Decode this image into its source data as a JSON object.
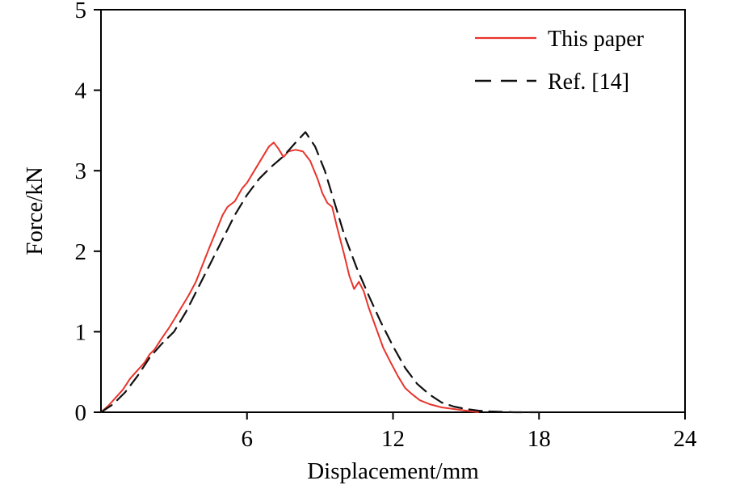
{
  "chart_data": {
    "type": "line",
    "title": "",
    "xlabel": "Displacement/mm",
    "ylabel": "Force/kN",
    "xlim": [
      0,
      24
    ],
    "ylim": [
      0,
      5
    ],
    "xticks": [
      6,
      12,
      18,
      24
    ],
    "yticks": [
      0,
      1,
      2,
      3,
      4,
      5
    ],
    "grid": false,
    "legend_position": "top-right",
    "frame_color": "#000000",
    "series": [
      {
        "name": "This paper",
        "color": "#e8342c",
        "style": "solid",
        "x": [
          0,
          0.3,
          0.6,
          0.9,
          1.2,
          1.5,
          1.8,
          2.0,
          2.2,
          2.5,
          2.8,
          3.0,
          3.3,
          3.6,
          3.9,
          4.2,
          4.5,
          4.8,
          5.0,
          5.2,
          5.5,
          5.8,
          6.0,
          6.3,
          6.6,
          6.9,
          7.1,
          7.3,
          7.5,
          7.7,
          8.0,
          8.3,
          8.6,
          8.9,
          9.1,
          9.3,
          9.5,
          9.7,
          10.0,
          10.2,
          10.4,
          10.6,
          10.8,
          11.0,
          11.3,
          11.6,
          11.9,
          12.2,
          12.5,
          12.8,
          13.1,
          13.5,
          14.0,
          14.5,
          15.0,
          15.5
        ],
        "y": [
          0,
          0.08,
          0.18,
          0.28,
          0.42,
          0.52,
          0.62,
          0.72,
          0.78,
          0.92,
          1.05,
          1.15,
          1.3,
          1.45,
          1.62,
          1.85,
          2.08,
          2.3,
          2.45,
          2.55,
          2.62,
          2.78,
          2.85,
          3.0,
          3.15,
          3.3,
          3.35,
          3.27,
          3.17,
          3.24,
          3.26,
          3.24,
          3.12,
          2.9,
          2.72,
          2.6,
          2.55,
          2.3,
          1.95,
          1.7,
          1.53,
          1.62,
          1.5,
          1.3,
          1.05,
          0.8,
          0.62,
          0.45,
          0.3,
          0.22,
          0.15,
          0.1,
          0.06,
          0.04,
          0.02,
          0
        ]
      },
      {
        "name": "Ref. [14]",
        "color": "#111111",
        "style": "dashed",
        "x": [
          0,
          0.5,
          1.0,
          1.5,
          2.0,
          2.5,
          3.0,
          3.5,
          4.0,
          4.5,
          5.0,
          5.5,
          6.0,
          6.5,
          7.0,
          7.5,
          8.0,
          8.4,
          8.8,
          9.2,
          9.6,
          10.0,
          10.5,
          11.0,
          11.5,
          12.0,
          12.5,
          13.0,
          13.5,
          14.0,
          14.5,
          15.0,
          15.5,
          16.0,
          17.0,
          18.0
        ],
        "y": [
          0,
          0.1,
          0.25,
          0.45,
          0.68,
          0.85,
          1.0,
          1.25,
          1.55,
          1.85,
          2.15,
          2.45,
          2.7,
          2.9,
          3.05,
          3.18,
          3.35,
          3.48,
          3.3,
          3.0,
          2.6,
          2.2,
          1.8,
          1.45,
          1.12,
          0.82,
          0.55,
          0.35,
          0.22,
          0.12,
          0.07,
          0.04,
          0.02,
          0.01,
          0,
          0
        ]
      }
    ]
  },
  "legend": {
    "items": [
      {
        "label": "This paper",
        "color": "#e8342c",
        "style": "solid"
      },
      {
        "label": "Ref. [14]",
        "color": "#111111",
        "style": "dashed"
      }
    ]
  }
}
